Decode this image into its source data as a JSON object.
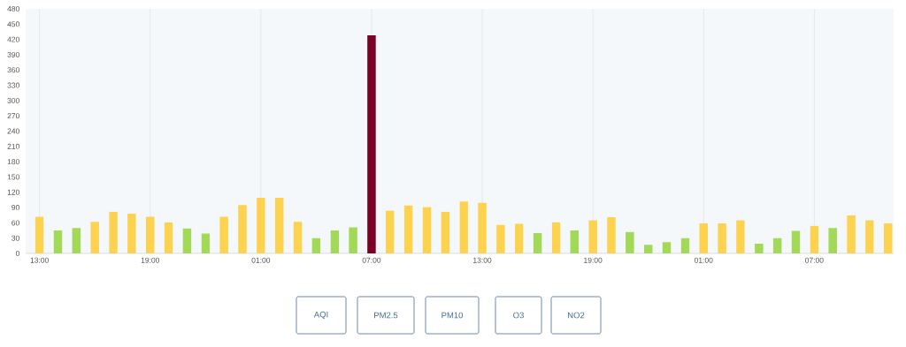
{
  "chart_data": {
    "type": "bar",
    "categories": [
      "13:00",
      null,
      null,
      null,
      null,
      null,
      "19:00",
      null,
      null,
      null,
      null,
      null,
      "01:00",
      null,
      null,
      null,
      null,
      null,
      "07:00",
      null,
      null,
      null,
      null,
      null,
      "13:00",
      null,
      null,
      null,
      null,
      null,
      "19:00",
      null,
      null,
      null,
      null,
      null,
      "01:00",
      null,
      null,
      null,
      null,
      null,
      "07:00",
      null,
      null,
      null,
      null
    ],
    "values": [
      72,
      45,
      50,
      62,
      82,
      78,
      72,
      61,
      49,
      39,
      72,
      95,
      109,
      109,
      62,
      30,
      45,
      51,
      428,
      84,
      94,
      91,
      82,
      102,
      99,
      56,
      58,
      40,
      61,
      45,
      65,
      71,
      42,
      17,
      22,
      30,
      59,
      59,
      65,
      19,
      30,
      44,
      54,
      50,
      75,
      65,
      59
    ],
    "colors": [
      "#fdd24e",
      "#a2d957",
      "#a2d957",
      "#fdd24e",
      "#fdd24e",
      "#fdd24e",
      "#fdd24e",
      "#fdd24e",
      "#a2d957",
      "#a2d957",
      "#fdd24e",
      "#fdd24e",
      "#fdd24e",
      "#fdd24e",
      "#fdd24e",
      "#a2d957",
      "#a2d957",
      "#a2d957",
      "#7a0026",
      "#fdd24e",
      "#fdd24e",
      "#fdd24e",
      "#fdd24e",
      "#fdd24e",
      "#fdd24e",
      "#fdd24e",
      "#fdd24e",
      "#a2d957",
      "#fdd24e",
      "#a2d957",
      "#fdd24e",
      "#fdd24e",
      "#a2d957",
      "#a2d957",
      "#a2d957",
      "#a2d957",
      "#fdd24e",
      "#fdd24e",
      "#fdd24e",
      "#a2d957",
      "#a2d957",
      "#a2d957",
      "#fdd24e",
      "#a2d957",
      "#fdd24e",
      "#fdd24e",
      "#fdd24e"
    ],
    "ylim": [
      0,
      480
    ],
    "yticks": [
      0,
      30,
      60,
      90,
      120,
      150,
      180,
      210,
      240,
      270,
      300,
      330,
      360,
      390,
      420,
      450,
      480
    ],
    "grid": "x",
    "annotations": [
      "AQI",
      "PM2.5",
      "PM10",
      "O3",
      "NO2"
    ]
  }
}
